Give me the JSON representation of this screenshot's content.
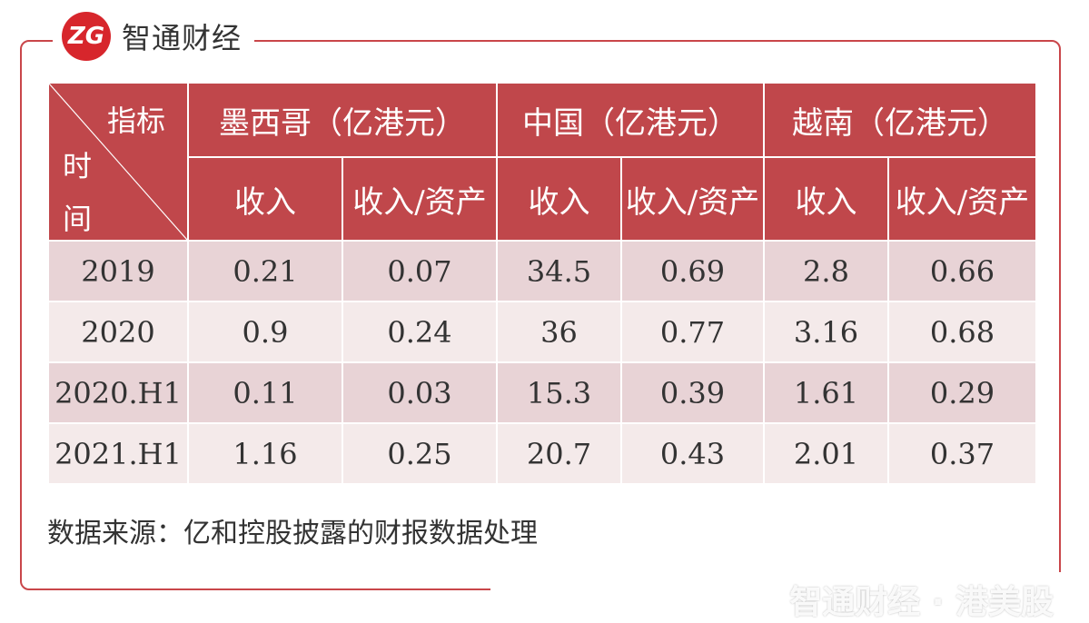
{
  "brand": {
    "logo_text": "ZG",
    "name": "智通财经"
  },
  "table": {
    "corner": {
      "top": "指标",
      "side_1": "时",
      "side_2": "间"
    },
    "groups": [
      "墨西哥（亿港元）",
      "中国（亿港元）",
      "越南（亿港元）"
    ],
    "subheaders": [
      "收入",
      "收入/资产",
      "收入",
      "收入/资产",
      "收入",
      "收入/资产"
    ],
    "rows": [
      [
        "2019",
        "0.21",
        "0.07",
        "34.5",
        "0.69",
        "2.8",
        "0.66"
      ],
      [
        "2020",
        "0.9",
        "0.24",
        "36",
        "0.77",
        "3.16",
        "0.68"
      ],
      [
        "2020.H1",
        "0.11",
        "0.03",
        "15.3",
        "0.39",
        "1.61",
        "0.29"
      ],
      [
        "2021.H1",
        "1.16",
        "0.25",
        "20.7",
        "0.43",
        "2.01",
        "0.37"
      ]
    ]
  },
  "source": "数据来源：亿和控股披露的财报数据处理",
  "watermark": "智通财经 · 港美股",
  "colors": {
    "header_bg": "#c0474b",
    "row_odd": "#e8d3d6",
    "row_even": "#f4eaea",
    "frame": "#c9464a",
    "logo": "#d7262c"
  }
}
